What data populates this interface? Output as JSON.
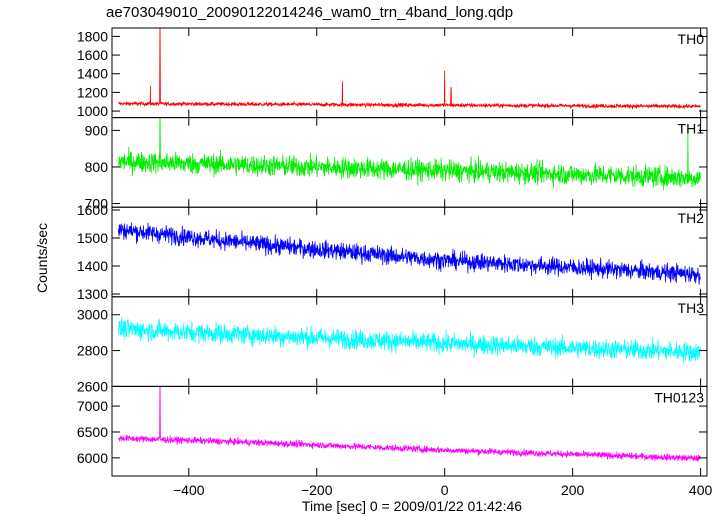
{
  "title": "ae703049010_20090122014246_wam0_trn_4band_long.qdp",
  "xlabel": "Time [sec] 0 = 2009/01/22 01:42:46",
  "ylabel": "Counts/sec",
  "chart_data": {
    "type": "line",
    "x_range": [
      -520,
      410
    ],
    "x_ticks": [
      -400,
      -200,
      0,
      200,
      400
    ],
    "x_tick_labels": [
      "−400",
      "−200",
      "0",
      "200",
      "400"
    ],
    "data_x_range": [
      -510,
      400
    ],
    "panels": [
      {
        "name": "TH0",
        "color": "#ff0000",
        "ylim": [
          930,
          1890
        ],
        "y_ticks": [
          1000,
          1200,
          1400,
          1600,
          1800
        ],
        "y_tick_labels": [
          "1000",
          "1200",
          "1400",
          "1600",
          "1800"
        ],
        "trend": [
          [
            -510,
            1080
          ],
          [
            400,
            1050
          ]
        ],
        "noise": 35,
        "spikes": [
          [
            -460,
            1270
          ],
          [
            -445,
            1890
          ],
          [
            -160,
            1320
          ],
          [
            0,
            1430
          ],
          [
            10,
            1250
          ]
        ]
      },
      {
        "name": "TH1",
        "color": "#00ee00",
        "ylim": [
          690,
          935
        ],
        "y_ticks": [
          700,
          800,
          900
        ],
        "y_tick_labels": [
          "700",
          "800",
          "900"
        ],
        "trend": [
          [
            -510,
            815
          ],
          [
            400,
            770
          ]
        ],
        "noise": 50,
        "spikes": [
          [
            -445,
            935
          ],
          [
            380,
            905
          ]
        ]
      },
      {
        "name": "TH2",
        "color": "#0000ff",
        "ylim": [
          1290,
          1610
        ],
        "y_ticks": [
          1300,
          1400,
          1500,
          1600
        ],
        "y_tick_labels": [
          "1300",
          "1400",
          "1500",
          "1600"
        ],
        "trend": [
          [
            -510,
            1530
          ],
          [
            -300,
            1480
          ],
          [
            0,
            1420
          ],
          [
            400,
            1370
          ]
        ],
        "noise": 55,
        "spikes": []
      },
      {
        "name": "TH3",
        "color": "#00ffff",
        "ylim": [
          2600,
          3100
        ],
        "y_ticks": [
          2600,
          2800,
          3000
        ],
        "y_tick_labels": [
          "2600",
          "2800",
          "3000"
        ],
        "trend": [
          [
            -510,
            2920
          ],
          [
            0,
            2840
          ],
          [
            400,
            2790
          ]
        ],
        "noise": 95,
        "spikes": []
      },
      {
        "name": "TH0123",
        "color": "#ff00ff",
        "ylim": [
          5650,
          7380
        ],
        "y_ticks": [
          6000,
          6500,
          7000
        ],
        "y_tick_labels": [
          "6000",
          "6500",
          "7000"
        ],
        "trend": [
          [
            -510,
            6380
          ],
          [
            -300,
            6300
          ],
          [
            0,
            6150
          ],
          [
            400,
            5990
          ]
        ],
        "noise": 110,
        "spikes": [
          [
            -445,
            7380
          ]
        ]
      }
    ]
  }
}
